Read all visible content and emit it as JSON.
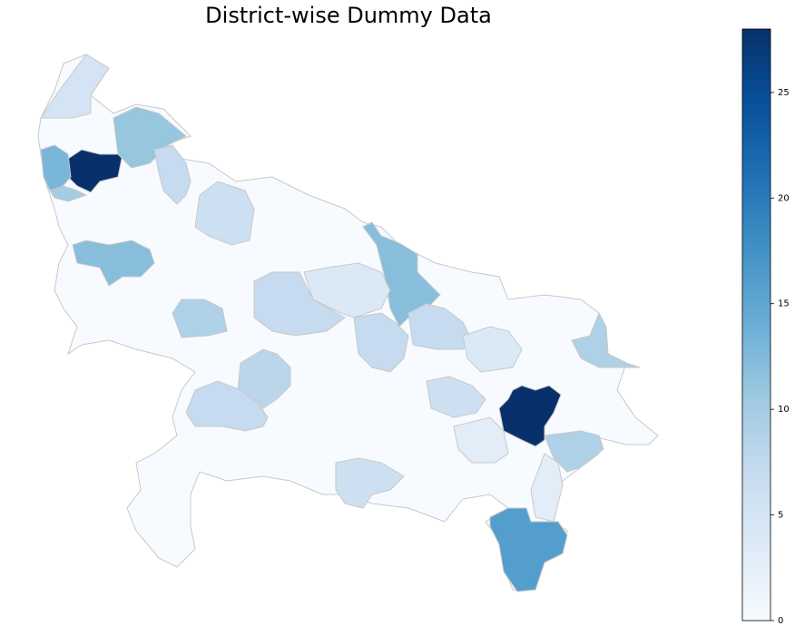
{
  "chart_data": {
    "type": "choropleth",
    "title": "District-wise Dummy Data",
    "colormap": "Blues",
    "values": [
      28,
      28,
      16,
      11,
      13,
      10,
      12,
      12,
      9,
      9,
      9,
      8,
      7,
      5,
      7,
      7,
      7,
      7,
      6,
      6,
      6,
      4,
      3,
      3,
      4
    ],
    "colorbar": {
      "lim": [
        0,
        28
      ],
      "ticks": [
        0,
        5,
        10,
        15,
        20,
        25
      ]
    }
  }
}
